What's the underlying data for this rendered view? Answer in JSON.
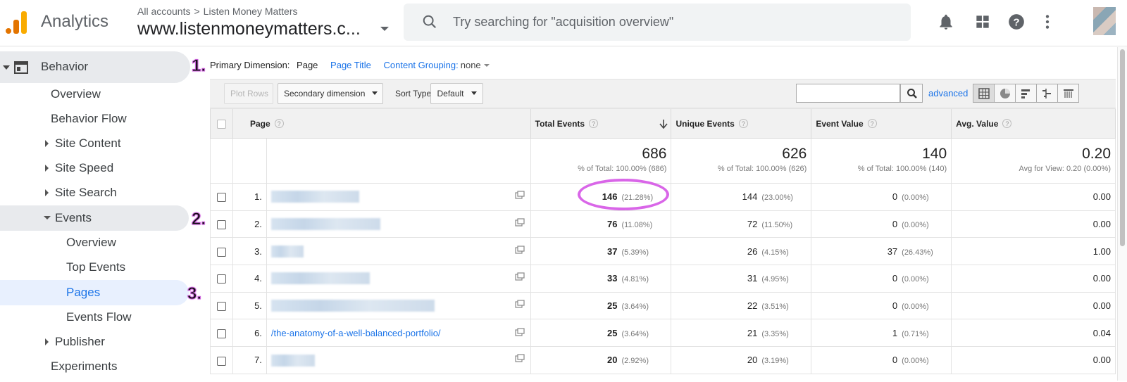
{
  "header": {
    "app_name": "Analytics",
    "account_root": "All accounts",
    "account_name": "Listen Money Matters",
    "property": "www.listenmoneymatters.c...",
    "search_placeholder": "Try searching for \"acquisition overview\"",
    "icons": [
      "bell-icon",
      "apps-grid-icon",
      "help-icon",
      "more-vert-icon"
    ]
  },
  "sidebar": {
    "section": "Behavior",
    "items": [
      {
        "label": "Overview"
      },
      {
        "label": "Behavior Flow"
      },
      {
        "label": "Site Content"
      },
      {
        "label": "Site Speed"
      },
      {
        "label": "Site Search"
      },
      {
        "label": "Events"
      },
      {
        "label": "Overview"
      },
      {
        "label": "Top Events"
      },
      {
        "label": "Pages"
      },
      {
        "label": "Events Flow"
      },
      {
        "label": "Publisher"
      },
      {
        "label": "Experiments"
      }
    ]
  },
  "annotations": {
    "a1": "1.",
    "a2": "2.",
    "a3": "3."
  },
  "dimension_bar": {
    "label": "Primary Dimension:",
    "current": "Page",
    "option_title": "Page Title",
    "content_grouping": "Content Grouping:",
    "grouping_value": "none"
  },
  "toolbar": {
    "plot_rows": "Plot Rows",
    "secondary_dimension": "Secondary dimension",
    "sort_type_label": "Sort Type:",
    "sort_type_value": "Default",
    "advanced": "advanced"
  },
  "table": {
    "columns": {
      "page": "Page",
      "total_events": "Total Events",
      "unique_events": "Unique Events",
      "event_value": "Event Value",
      "avg_value": "Avg. Value"
    },
    "totals": {
      "total_events": "686",
      "total_events_sub": "% of Total: 100.00% (686)",
      "unique_events": "626",
      "unique_events_sub": "% of Total: 100.00% (626)",
      "event_value": "140",
      "event_value_sub": "% of Total: 100.00% (140)",
      "avg_value": "0.20",
      "avg_value_sub": "Avg for View: 0.20 (0.00%)"
    },
    "rows": [
      {
        "idx": "1.",
        "page": "",
        "te": "146",
        "te_pct": "(21.28%)",
        "ue": "144",
        "ue_pct": "(23.00%)",
        "ev": "0",
        "ev_pct": "(0.00%)",
        "av": "0.00"
      },
      {
        "idx": "2.",
        "page": "",
        "te": "76",
        "te_pct": "(11.08%)",
        "ue": "72",
        "ue_pct": "(11.50%)",
        "ev": "0",
        "ev_pct": "(0.00%)",
        "av": "0.00"
      },
      {
        "idx": "3.",
        "page": "",
        "te": "37",
        "te_pct": "(5.39%)",
        "ue": "26",
        "ue_pct": "(4.15%)",
        "ev": "37",
        "ev_pct": "(26.43%)",
        "av": "1.00"
      },
      {
        "idx": "4.",
        "page": "",
        "te": "33",
        "te_pct": "(4.81%)",
        "ue": "31",
        "ue_pct": "(4.95%)",
        "ev": "0",
        "ev_pct": "(0.00%)",
        "av": "0.00"
      },
      {
        "idx": "5.",
        "page": "",
        "te": "25",
        "te_pct": "(3.64%)",
        "ue": "22",
        "ue_pct": "(3.51%)",
        "ev": "0",
        "ev_pct": "(0.00%)",
        "av": "0.00"
      },
      {
        "idx": "6.",
        "page": "/the-anatomy-of-a-well-balanced-portfolio/",
        "te": "25",
        "te_pct": "(3.64%)",
        "ue": "21",
        "ue_pct": "(3.35%)",
        "ev": "1",
        "ev_pct": "(0.71%)",
        "av": "0.04"
      },
      {
        "idx": "7.",
        "page": "",
        "te": "20",
        "te_pct": "(2.92%)",
        "ue": "20",
        "ue_pct": "(3.19%)",
        "ev": "0",
        "ev_pct": "(0.00%)",
        "av": "0.00"
      }
    ]
  },
  "colors": {
    "accent": "#1a73e8",
    "annotation": "#d966e8",
    "logo_orange": "#e37400",
    "logo_yellow": "#f9ab00"
  }
}
